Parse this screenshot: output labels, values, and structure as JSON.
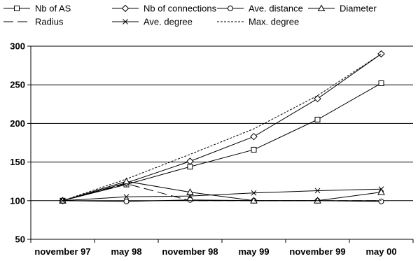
{
  "chart_data": {
    "type": "line",
    "categories": [
      "november 97",
      "may 98",
      "november 98",
      "may 99",
      "november 99",
      "may 00"
    ],
    "ylim": [
      50,
      300
    ],
    "yticks": [
      50,
      100,
      150,
      200,
      250,
      300
    ],
    "grid": "horizontal",
    "legend_position": "top",
    "series": [
      {
        "name": "Nb of AS",
        "marker": "square",
        "dash": "solid",
        "values": [
          100,
          121,
          144,
          166,
          205,
          252
        ]
      },
      {
        "name": "Nb of connections",
        "marker": "diamond",
        "dash": "solid",
        "values": [
          100,
          123,
          151,
          183,
          232,
          290
        ]
      },
      {
        "name": "Ave. distance",
        "marker": "circle",
        "dash": "solid",
        "values": [
          100,
          99,
          101,
          100,
          100,
          99
        ]
      },
      {
        "name": "Diameter",
        "marker": "triangle",
        "dash": "solid",
        "values": [
          100,
          125,
          111,
          100,
          100,
          111
        ]
      },
      {
        "name": "Radius",
        "marker": "none",
        "dash": "longdash",
        "values": [
          100,
          122,
          100,
          100,
          100,
          100
        ]
      },
      {
        "name": "Ave. degree",
        "marker": "x",
        "dash": "solid",
        "values": [
          100,
          105,
          106,
          110,
          113,
          115
        ]
      },
      {
        "name": "Max. degree",
        "marker": "none",
        "dash": "shortdash",
        "values": [
          100,
          128,
          160,
          193,
          236,
          290
        ]
      }
    ]
  }
}
